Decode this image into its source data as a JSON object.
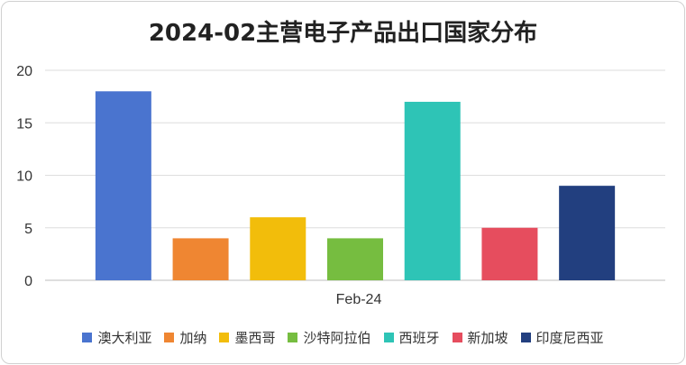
{
  "chart_data": {
    "type": "bar",
    "title": "2024-02主营电子产品出口国家分布",
    "categories": [
      "Feb-24"
    ],
    "series": [
      {
        "name": "澳大利亚",
        "values": [
          18
        ],
        "color": "#4a74cf"
      },
      {
        "name": "加纳",
        "values": [
          4
        ],
        "color": "#ef8632"
      },
      {
        "name": "墨西哥",
        "values": [
          6
        ],
        "color": "#f2bd0b"
      },
      {
        "name": "沙特阿拉伯",
        "values": [
          4
        ],
        "color": "#76bd40"
      },
      {
        "name": "西班牙",
        "values": [
          17
        ],
        "color": "#2ec4b6"
      },
      {
        "name": "新加坡",
        "values": [
          5
        ],
        "color": "#e64d5e"
      },
      {
        "name": "印度尼西亚",
        "values": [
          9
        ],
        "color": "#223f7f"
      }
    ],
    "yticks": [
      "0",
      "5",
      "10",
      "15",
      "20"
    ],
    "ylim": [
      0,
      20
    ],
    "xlabel": "",
    "ylabel": "",
    "legend_position": "bottom",
    "grid": true
  }
}
